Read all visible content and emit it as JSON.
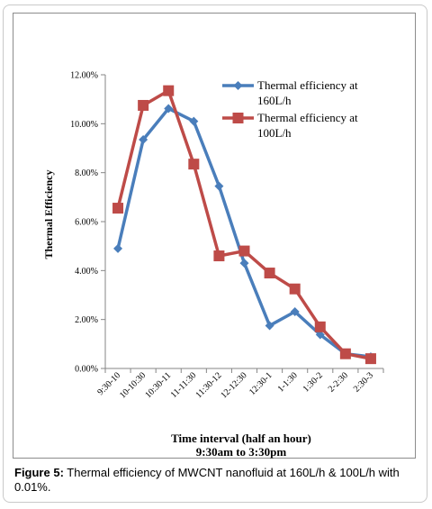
{
  "chart_data": {
    "type": "line",
    "title": "",
    "xlabel": "Time interval (half an hour)",
    "xlabel_line2": "9:30am to 3:30pm",
    "ylabel": "Thermal Efficiency",
    "ylim": [
      0,
      0.12
    ],
    "yticks": [
      "0.00%",
      "2.00%",
      "4.00%",
      "6.00%",
      "8.00%",
      "10.00%",
      "12.00%"
    ],
    "categories": [
      "9:30-10",
      "10-10:30",
      "10:30-11",
      "11-11:30",
      "11:30-12",
      "12-12:30",
      "12:30-1",
      "1-1:30",
      "1:30-2",
      "2-2:30",
      "2:30-3"
    ],
    "grid": false,
    "legend_position": "top-right",
    "series": [
      {
        "name": "Thermal efficiency at 160L/h",
        "legend_lines": [
          "Thermal efficiency at",
          "160L/h"
        ],
        "color": "#4a7ebb",
        "marker": "diamond",
        "values": [
          0.049,
          0.0935,
          0.1062,
          0.101,
          0.0745,
          0.043,
          0.0175,
          0.0232,
          0.0138,
          0.006,
          0.0048
        ]
      },
      {
        "name": "Thermal efficiency at 100L/h",
        "legend_lines": [
          "Thermal efficiency at",
          "100L/h"
        ],
        "color": "#be4b48",
        "marker": "square",
        "values": [
          0.0655,
          0.1075,
          0.1135,
          0.0835,
          0.046,
          0.048,
          0.039,
          0.0325,
          0.017,
          0.006,
          0.004
        ]
      }
    ]
  },
  "caption": {
    "label": "Figure 5:",
    "text": " Thermal efficiency of MWCNT nanofluid at 160L/h & 100L/h with 0.01%."
  }
}
